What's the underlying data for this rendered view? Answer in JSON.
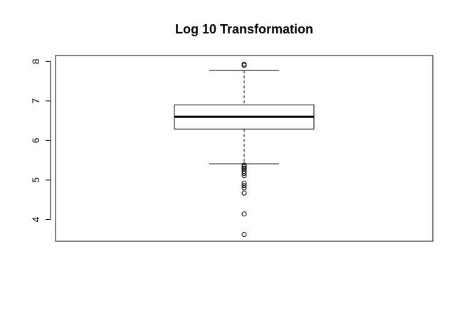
{
  "chart_data": {
    "type": "boxplot",
    "title": "Log 10 Transformation",
    "xlabel": "",
    "ylabel": "",
    "ylim": [
      3.45,
      8.15
    ],
    "yticks": [
      4,
      5,
      6,
      7,
      8
    ],
    "ytick_labels": [
      "4",
      "5",
      "6",
      "7",
      "8"
    ],
    "box": {
      "lower_whisker": 5.41,
      "q1": 6.29,
      "median": 6.6,
      "q3": 6.9,
      "upper_whisker": 7.77
    },
    "outliers": [
      7.9,
      7.93,
      5.38,
      5.34,
      5.3,
      5.27,
      5.22,
      5.17,
      5.11,
      4.92,
      4.86,
      4.8,
      4.67,
      4.14,
      3.62
    ],
    "colors": {
      "stroke": "#000000",
      "background": "#ffffff"
    }
  }
}
